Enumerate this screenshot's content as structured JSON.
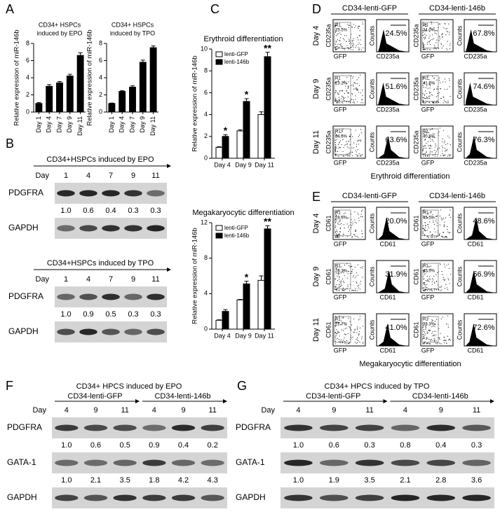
{
  "panel_letters": [
    "A",
    "B",
    "C",
    "D",
    "E",
    "F",
    "G"
  ],
  "chart_data": [
    {
      "type": "bar",
      "title": [
        "CD34+ HSPCs",
        "induced by EPO"
      ],
      "y_label": "Relative expression of miR-146b",
      "categories": [
        "Day 1",
        "Day 4",
        "Day 7",
        "Day 9",
        "Day 11"
      ],
      "values": [
        1.0,
        3.0,
        3.4,
        4.2,
        6.6
      ],
      "errors": [
        0.1,
        0.2,
        0.15,
        0.2,
        0.3
      ],
      "color": "#000000",
      "ylim": [
        0,
        8
      ],
      "yticks": [
        0,
        2,
        4,
        6,
        8
      ],
      "xtick_rotation": -90
    },
    {
      "type": "bar",
      "title": [
        "CD34+ HSPCs",
        "induced by TPO"
      ],
      "y_label": "Relative expression of miR-146b",
      "categories": [
        "Day 1",
        "Day 4",
        "Day 7",
        "Day 9",
        "Day 11"
      ],
      "values": [
        1.0,
        2.4,
        2.9,
        5.8,
        7.5
      ],
      "errors": [
        0.05,
        0.1,
        0.15,
        0.25,
        0.2
      ],
      "color": "#000000",
      "ylim": [
        0,
        8
      ],
      "yticks": [
        0,
        2,
        4,
        6,
        8
      ],
      "xtick_rotation": -90
    },
    {
      "type": "bar",
      "title": [
        "Erythroid differentiation"
      ],
      "y_label": "Relative expression of miR-146b",
      "categories": [
        "Day 4",
        "Day 9",
        "Day 11"
      ],
      "series": [
        {
          "name": "lenti-GFP",
          "color": "#ffffff",
          "values": [
            1.0,
            2.5,
            4.0
          ],
          "errors": [
            0.05,
            0.1,
            0.25
          ]
        },
        {
          "name": "lenti-146b",
          "color": "#000000",
          "values": [
            2.0,
            5.2,
            9.3
          ],
          "errors": [
            0.15,
            0.25,
            0.4
          ]
        }
      ],
      "annotations": [
        "*",
        "*",
        "**"
      ],
      "ylim": [
        0,
        10
      ],
      "yticks": [
        0,
        2,
        4,
        6,
        8,
        10
      ],
      "legend": "upper left"
    },
    {
      "type": "bar",
      "title": [
        "Megakaryocytic differentiation"
      ],
      "y_label": "Relative expression of miR-146b",
      "categories": [
        "Day 4",
        "Day 9",
        "Day 11"
      ],
      "series": [
        {
          "name": "lenti-GFP",
          "color": "#ffffff",
          "values": [
            1.0,
            3.3,
            5.5
          ],
          "errors": [
            0.05,
            0.05,
            0.5
          ]
        },
        {
          "name": "lenti-146b",
          "color": "#000000",
          "values": [
            2.0,
            5.1,
            11.3
          ],
          "errors": [
            0.2,
            0.3,
            0.35
          ]
        }
      ],
      "annotations": [
        null,
        "*",
        "**"
      ],
      "ylim": [
        0,
        12
      ],
      "yticks": [
        0,
        4,
        8,
        12
      ],
      "legend": "upper left"
    }
  ],
  "blots": [
    {
      "title": "CD34+HSPCs induced by EPO",
      "day_label": "Day",
      "days": [
        "1",
        "4",
        "7",
        "9",
        "11"
      ],
      "rows": [
        {
          "name": "PDGFRA",
          "quant": [
            "1.0",
            "0.6",
            "0.4",
            "0.3",
            "0.3"
          ]
        },
        {
          "name": "GAPDH"
        }
      ]
    },
    {
      "title": "CD34+HSPCs induced by TPO",
      "day_label": "Day",
      "days": [
        "1",
        "4",
        "7",
        "9",
        "11"
      ],
      "rows": [
        {
          "name": "PDGFRA",
          "quant": [
            "1.0",
            "0.9",
            "0.5",
            "0.3",
            "0.3"
          ]
        },
        {
          "name": "GAPDH"
        }
      ]
    },
    {
      "title": "CD34+ HPCS induced by EPO",
      "groups": [
        "CD34-lenti-GFP",
        "CD34-lenti-146b"
      ],
      "day_label": "Day",
      "days": [
        "4",
        "9",
        "11",
        "4",
        "9",
        "11"
      ],
      "rows": [
        {
          "name": "PDGFRA",
          "quant": [
            "1.0",
            "0.6",
            "0.5",
            "0.9",
            "0.4",
            "0.2"
          ]
        },
        {
          "name": "GATA-1",
          "quant": [
            "1.0",
            "2.1",
            "3.5",
            "1.8",
            "4.2",
            "4.3"
          ]
        },
        {
          "name": "GAPDH"
        }
      ]
    },
    {
      "title": "CD34+ HPCS induced by TPO",
      "groups": [
        "CD34-lenti-GFP",
        "CD34-lenti-146b"
      ],
      "day_label": "Day",
      "days": [
        "4",
        "9",
        "11",
        "4",
        "9",
        "11"
      ],
      "rows": [
        {
          "name": "PDGFRA",
          "quant": [
            "1.0",
            "0.6",
            "0.3",
            "0.8",
            "0.4",
            "0.3"
          ]
        },
        {
          "name": "GATA-1",
          "quant": [
            "1.0",
            "1.9",
            "3.5",
            "2.1",
            "2.8",
            "3.6"
          ]
        },
        {
          "name": "GAPDH"
        }
      ]
    }
  ],
  "flow": [
    {
      "columns": [
        "CD34-lenti-GFP",
        "CD34-lenti-146b"
      ],
      "y_label": "CD235a",
      "x_label": "GFP",
      "hist_y_label": "Counts",
      "hist_x_label": "CD235a",
      "gate_label": "R1",
      "rows": [
        {
          "day": "Day 4",
          "gate": [
            "25.5%",
            "34.0%"
          ],
          "percent": [
            "24.5%",
            "67.8%"
          ]
        },
        {
          "day": "Day 9",
          "gate": [
            "23.2%",
            "41.6%"
          ],
          "percent": [
            "51.6%",
            "74.6%"
          ]
        },
        {
          "day": "Day 11",
          "gate": [
            "34.6%",
            "40.6%"
          ],
          "percent": [
            "63.6%",
            "76.3%"
          ]
        }
      ],
      "footer": "Erythroid differentiation"
    },
    {
      "columns": [
        "CD34-lenti-GFP",
        "CD34-lenti-146b"
      ],
      "y_label": "CD61",
      "x_label": "GFP",
      "hist_y_label": "Counts",
      "hist_x_label": "CD61",
      "gate_label": "R1",
      "rows": [
        {
          "day": "Day 4",
          "gate": [
            "28.5%",
            "45.5%"
          ],
          "percent": [
            "20.0%",
            "48.6%"
          ]
        },
        {
          "day": "Day 9",
          "gate": [
            "26.3%",
            "42.9%"
          ],
          "percent": [
            "31.9%",
            "56.9%"
          ]
        },
        {
          "day": "Day 11",
          "gate": [
            "27.7%",
            "38.3%"
          ],
          "percent": [
            "41.0%",
            "72.6%"
          ]
        }
      ],
      "footer": "Megakaryocytic differentiation"
    }
  ]
}
